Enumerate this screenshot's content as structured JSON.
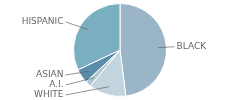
{
  "chart_data": {
    "type": "pie",
    "categories": [
      "BLACK",
      "WHITE",
      "A.I.",
      "ASIAN",
      "HISPANIC"
    ],
    "values": [
      48,
      13,
      2,
      5,
      32
    ],
    "colors": [
      "#9ab5c5",
      "#c2d5de",
      "#b0c8d5",
      "#5a8ba8",
      "#7aafc2"
    ]
  }
}
